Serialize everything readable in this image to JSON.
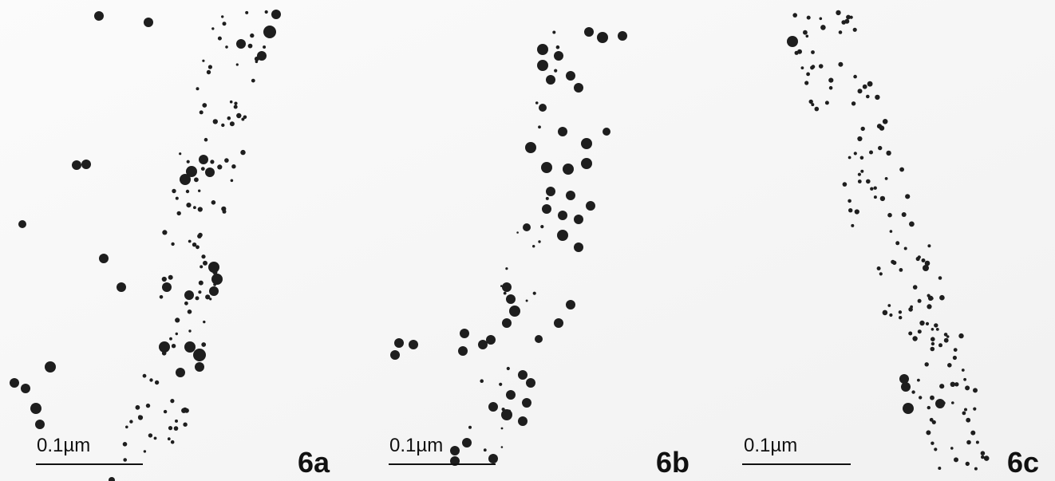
{
  "panels": [
    {
      "scale_bar": "0.1µm",
      "label": "6a"
    },
    {
      "scale_bar": "0.1µm",
      "label": "6b"
    },
    {
      "scale_bar": "0.1µm",
      "label": "6c"
    }
  ]
}
